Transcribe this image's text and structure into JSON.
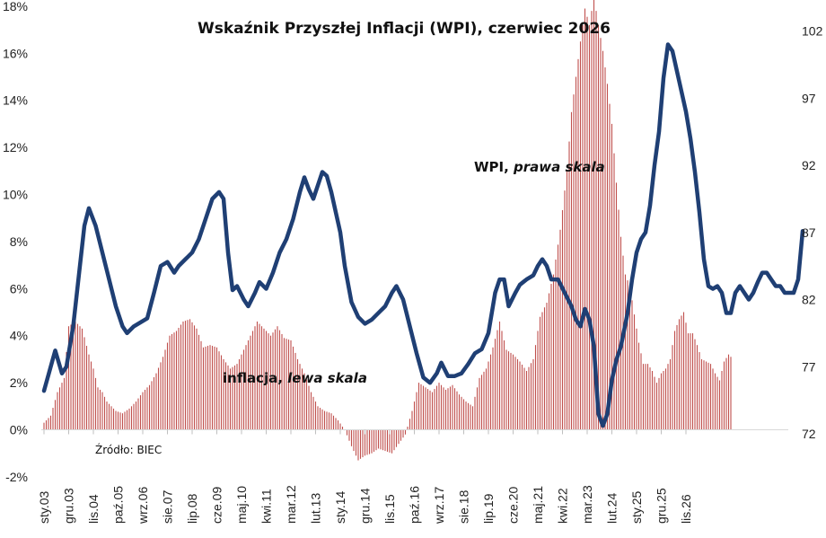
{
  "chart_data": {
    "type": "bar+line",
    "title": "Wskaźnik Przyszłej Inflacji (WPI), czerwiec 2026",
    "source": "Źródło: BIEC",
    "annotations": {
      "wpi": {
        "name": "WPI, ",
        "scale": "prawa skala"
      },
      "inflation": {
        "name": "inflacja, ",
        "scale": "lewa skala"
      }
    },
    "x_labels": [
      "sty.03",
      "gru.03",
      "lis.04",
      "paź.05",
      "wrz.06",
      "sie.07",
      "lip.08",
      "cze.09",
      "maj.10",
      "kwi.11",
      "mar.12",
      "lut.13",
      "sty.14",
      "gru.14",
      "lis.15",
      "paź.16",
      "wrz.17",
      "sie.18",
      "lip.19",
      "cze.20",
      "maj.21",
      "kwi.22",
      "mar.23",
      "lut.24",
      "sty.25",
      "gru.25",
      "lis.26"
    ],
    "y_left": {
      "min": -2,
      "max": 18,
      "step": 2,
      "format": "percent"
    },
    "y_right": {
      "min": 72,
      "max": 102,
      "ticks": [
        72,
        77,
        82,
        87,
        92,
        97,
        102
      ]
    },
    "colors": {
      "inflation_bars": "#c0504d",
      "wpi_line": "#1f3f74"
    },
    "series": [
      {
        "name": "inflacja",
        "axis": "left",
        "kind": "bar",
        "anchors": [
          [
            0,
            0.3
          ],
          [
            3,
            0.6
          ],
          [
            6,
            1.6
          ],
          [
            9,
            2.2
          ],
          [
            11,
            4.4
          ],
          [
            14,
            4.6
          ],
          [
            17,
            4.3
          ],
          [
            20,
            3.2
          ],
          [
            22,
            2.6
          ],
          [
            24,
            1.8
          ],
          [
            26,
            1.6
          ],
          [
            28,
            1.2
          ],
          [
            30,
            1.0
          ],
          [
            32,
            0.8
          ],
          [
            35,
            0.7
          ],
          [
            38,
            0.9
          ],
          [
            41,
            1.2
          ],
          [
            44,
            1.6
          ],
          [
            47,
            1.9
          ],
          [
            50,
            2.4
          ],
          [
            53,
            3.1
          ],
          [
            56,
            4.0
          ],
          [
            59,
            4.2
          ],
          [
            62,
            4.6
          ],
          [
            65,
            4.7
          ],
          [
            68,
            4.3
          ],
          [
            71,
            3.5
          ],
          [
            74,
            3.6
          ],
          [
            77,
            3.5
          ],
          [
            80,
            3.0
          ],
          [
            83,
            2.6
          ],
          [
            86,
            2.8
          ],
          [
            89,
            3.4
          ],
          [
            92,
            4.0
          ],
          [
            95,
            4.6
          ],
          [
            98,
            4.3
          ],
          [
            101,
            4.0
          ],
          [
            104,
            4.4
          ],
          [
            107,
            3.9
          ],
          [
            110,
            3.8
          ],
          [
            113,
            3.0
          ],
          [
            116,
            2.4
          ],
          [
            119,
            1.6
          ],
          [
            122,
            1.0
          ],
          [
            125,
            0.8
          ],
          [
            128,
            0.7
          ],
          [
            131,
            0.4
          ],
          [
            134,
            0.0
          ],
          [
            137,
            -0.7
          ],
          [
            140,
            -1.3
          ],
          [
            143,
            -1.1
          ],
          [
            146,
            -1.0
          ],
          [
            149,
            -0.8
          ],
          [
            152,
            -0.9
          ],
          [
            155,
            -1.0
          ],
          [
            158,
            -0.6
          ],
          [
            161,
            -0.2
          ],
          [
            164,
            0.8
          ],
          [
            167,
            2.0
          ],
          [
            170,
            1.8
          ],
          [
            173,
            1.6
          ],
          [
            176,
            2.0
          ],
          [
            179,
            1.7
          ],
          [
            182,
            1.9
          ],
          [
            185,
            1.5
          ],
          [
            188,
            1.2
          ],
          [
            191,
            1.0
          ],
          [
            194,
            2.2
          ],
          [
            197,
            2.6
          ],
          [
            200,
            3.5
          ],
          [
            203,
            4.6
          ],
          [
            206,
            3.4
          ],
          [
            209,
            3.2
          ],
          [
            212,
            2.9
          ],
          [
            215,
            2.5
          ],
          [
            218,
            3.0
          ],
          [
            221,
            4.8
          ],
          [
            224,
            5.4
          ],
          [
            227,
            6.6
          ],
          [
            230,
            8.5
          ],
          [
            233,
            11.0
          ],
          [
            235,
            13.5
          ],
          [
            237,
            15.0
          ],
          [
            239,
            16.5
          ],
          [
            241,
            17.9
          ],
          [
            243,
            17.2
          ],
          [
            245,
            18.4
          ],
          [
            247,
            17.2
          ],
          [
            249,
            16.1
          ],
          [
            251,
            14.7
          ],
          [
            253,
            13.0
          ],
          [
            255,
            10.5
          ],
          [
            257,
            8.2
          ],
          [
            259,
            6.6
          ],
          [
            261,
            6.1
          ],
          [
            263,
            4.9
          ],
          [
            265,
            3.7
          ],
          [
            267,
            2.8
          ],
          [
            269,
            2.8
          ],
          [
            271,
            2.5
          ],
          [
            273,
            2.0
          ],
          [
            275,
            2.4
          ],
          [
            277,
            2.6
          ],
          [
            279,
            3.0
          ],
          [
            281,
            4.2
          ],
          [
            283,
            4.7
          ],
          [
            285,
            5.0
          ],
          [
            287,
            4.1
          ],
          [
            289,
            4.1
          ],
          [
            291,
            3.6
          ],
          [
            293,
            3.0
          ],
          [
            295,
            2.9
          ],
          [
            297,
            2.8
          ],
          [
            299,
            2.4
          ],
          [
            301,
            2.1
          ],
          [
            303,
            2.9
          ],
          [
            305,
            3.2
          ],
          [
            306,
            3.1
          ]
        ]
      },
      {
        "name": "WPI",
        "axis": "right",
        "kind": "line",
        "anchors": [
          [
            0,
            75.2
          ],
          [
            3,
            77.0
          ],
          [
            5,
            78.2
          ],
          [
            8,
            76.5
          ],
          [
            10,
            77.0
          ],
          [
            13,
            80.0
          ],
          [
            16,
            84.5
          ],
          [
            18,
            87.5
          ],
          [
            20,
            88.8
          ],
          [
            23,
            87.5
          ],
          [
            26,
            85.5
          ],
          [
            29,
            83.5
          ],
          [
            32,
            81.5
          ],
          [
            35,
            80.0
          ],
          [
            37,
            79.5
          ],
          [
            40,
            80.0
          ],
          [
            43,
            80.3
          ],
          [
            46,
            80.6
          ],
          [
            49,
            82.5
          ],
          [
            52,
            84.5
          ],
          [
            55,
            84.8
          ],
          [
            58,
            84.0
          ],
          [
            60,
            84.5
          ],
          [
            63,
            85.0
          ],
          [
            66,
            85.5
          ],
          [
            69,
            86.5
          ],
          [
            72,
            88.0
          ],
          [
            75,
            89.5
          ],
          [
            78,
            90.0
          ],
          [
            80,
            89.5
          ],
          [
            82,
            85.5
          ],
          [
            84,
            82.7
          ],
          [
            86,
            83.0
          ],
          [
            89,
            82.0
          ],
          [
            91,
            81.5
          ],
          [
            94,
            82.5
          ],
          [
            96,
            83.3
          ],
          [
            99,
            82.8
          ],
          [
            102,
            84.0
          ],
          [
            105,
            85.5
          ],
          [
            108,
            86.5
          ],
          [
            111,
            88.0
          ],
          [
            114,
            90.0
          ],
          [
            116,
            91.1
          ],
          [
            118,
            90.2
          ],
          [
            120,
            89.5
          ],
          [
            122,
            90.5
          ],
          [
            124,
            91.5
          ],
          [
            126,
            91.2
          ],
          [
            128,
            90.0
          ],
          [
            130,
            88.5
          ],
          [
            132,
            87.0
          ],
          [
            134,
            84.5
          ],
          [
            137,
            81.8
          ],
          [
            140,
            80.7
          ],
          [
            143,
            80.2
          ],
          [
            146,
            80.5
          ],
          [
            149,
            81.0
          ],
          [
            152,
            81.5
          ],
          [
            155,
            82.5
          ],
          [
            157,
            83.0
          ],
          [
            160,
            82.0
          ],
          [
            163,
            80.0
          ],
          [
            166,
            78.0
          ],
          [
            169,
            76.2
          ],
          [
            172,
            75.8
          ],
          [
            175,
            76.5
          ],
          [
            177,
            77.3
          ],
          [
            180,
            76.3
          ],
          [
            183,
            76.3
          ],
          [
            186,
            76.5
          ],
          [
            189,
            77.2
          ],
          [
            192,
            78.0
          ],
          [
            195,
            78.3
          ],
          [
            198,
            79.5
          ],
          [
            201,
            82.5
          ],
          [
            203,
            83.5
          ],
          [
            205,
            83.5
          ],
          [
            207,
            81.5
          ],
          [
            210,
            82.5
          ],
          [
            212,
            83.1
          ],
          [
            215,
            83.5
          ],
          [
            218,
            83.8
          ],
          [
            220,
            84.5
          ],
          [
            222,
            85.0
          ],
          [
            224,
            84.5
          ],
          [
            226,
            83.5
          ],
          [
            229,
            83.5
          ],
          [
            232,
            82.5
          ],
          [
            235,
            81.5
          ],
          [
            237,
            80.5
          ],
          [
            239,
            80.0
          ],
          [
            241,
            81.3
          ],
          [
            243,
            80.5
          ],
          [
            245,
            78.5
          ],
          [
            247,
            73.5
          ],
          [
            249,
            72.6
          ],
          [
            251,
            73.5
          ],
          [
            253,
            76.0
          ],
          [
            255,
            77.5
          ],
          [
            257,
            78.5
          ],
          [
            260,
            81.0
          ],
          [
            262,
            83.5
          ],
          [
            264,
            85.5
          ],
          [
            266,
            86.5
          ],
          [
            268,
            87.0
          ],
          [
            270,
            89.0
          ],
          [
            272,
            92.0
          ],
          [
            274,
            94.5
          ],
          [
            276,
            98.5
          ],
          [
            278,
            101.0
          ],
          [
            280,
            100.5
          ],
          [
            282,
            99.0
          ],
          [
            284,
            97.5
          ],
          [
            286,
            96.0
          ],
          [
            288,
            94.0
          ],
          [
            290,
            91.5
          ],
          [
            292,
            88.5
          ],
          [
            294,
            85.0
          ],
          [
            296,
            83.0
          ],
          [
            298,
            82.8
          ],
          [
            300,
            83.0
          ],
          [
            302,
            82.5
          ],
          [
            304,
            81.0
          ],
          [
            306,
            81.0
          ],
          [
            308,
            82.5
          ],
          [
            310,
            83.0
          ],
          [
            312,
            82.5
          ],
          [
            314,
            82.0
          ],
          [
            316,
            82.5
          ],
          [
            318,
            83.3
          ],
          [
            320,
            84.0
          ],
          [
            322,
            84.0
          ],
          [
            324,
            83.5
          ],
          [
            326,
            83.0
          ],
          [
            328,
            83.0
          ],
          [
            330,
            82.5
          ],
          [
            332,
            82.5
          ],
          [
            334,
            82.5
          ],
          [
            336,
            83.5
          ],
          [
            338,
            87.1
          ]
        ]
      }
    ]
  }
}
